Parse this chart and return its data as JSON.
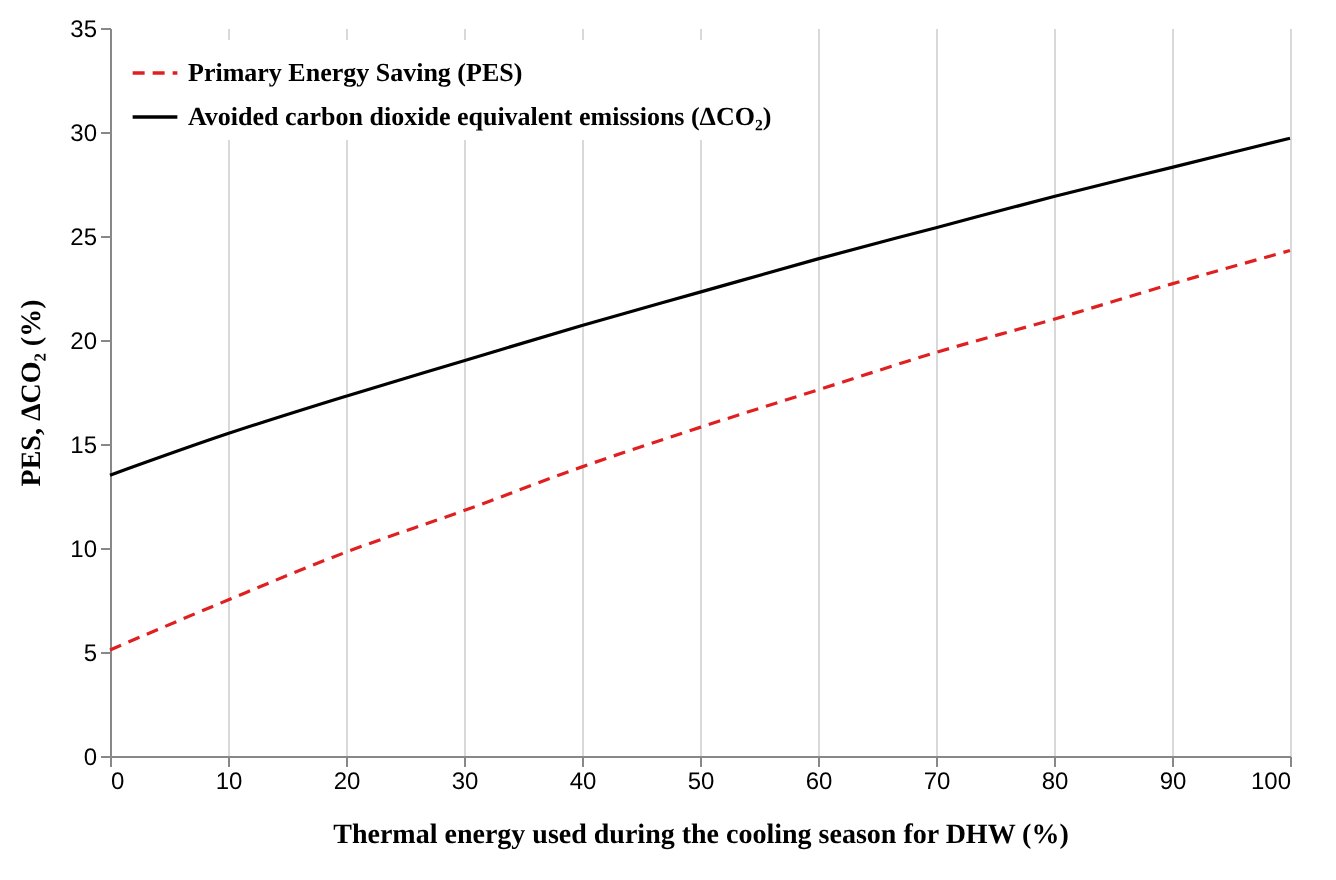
{
  "chart_data": {
    "type": "line",
    "xlabel": "Thermal energy used during the cooling season for DHW (%)",
    "ylabel": "PES, ΔCO₂ (%)",
    "x": [
      0,
      10,
      20,
      30,
      40,
      50,
      60,
      70,
      80,
      90,
      100
    ],
    "series": [
      {
        "name": "Primary Energy Saving (PES)",
        "color": "#e02020",
        "line_style": "dashed",
        "values": [
          5.1,
          7.5,
          9.8,
          11.8,
          13.9,
          15.8,
          17.6,
          19.4,
          21.0,
          22.7,
          24.3
        ]
      },
      {
        "name": "Avoided carbon dioxide equivalent emissions  (ΔCO₂)",
        "color": "#000000",
        "line_style": "solid",
        "values": [
          13.5,
          15.5,
          17.3,
          19.0,
          20.7,
          22.3,
          23.9,
          25.4,
          26.9,
          28.3,
          29.7
        ]
      }
    ],
    "xlim": [
      0,
      100
    ],
    "xticks": [
      0,
      10,
      20,
      30,
      40,
      50,
      60,
      70,
      80,
      90,
      100
    ],
    "ylim": [
      0,
      35
    ],
    "yticks": [
      0,
      5,
      10,
      15,
      20,
      25,
      30,
      35
    ],
    "grid": "x",
    "legend": "top left",
    "marker": "none"
  }
}
